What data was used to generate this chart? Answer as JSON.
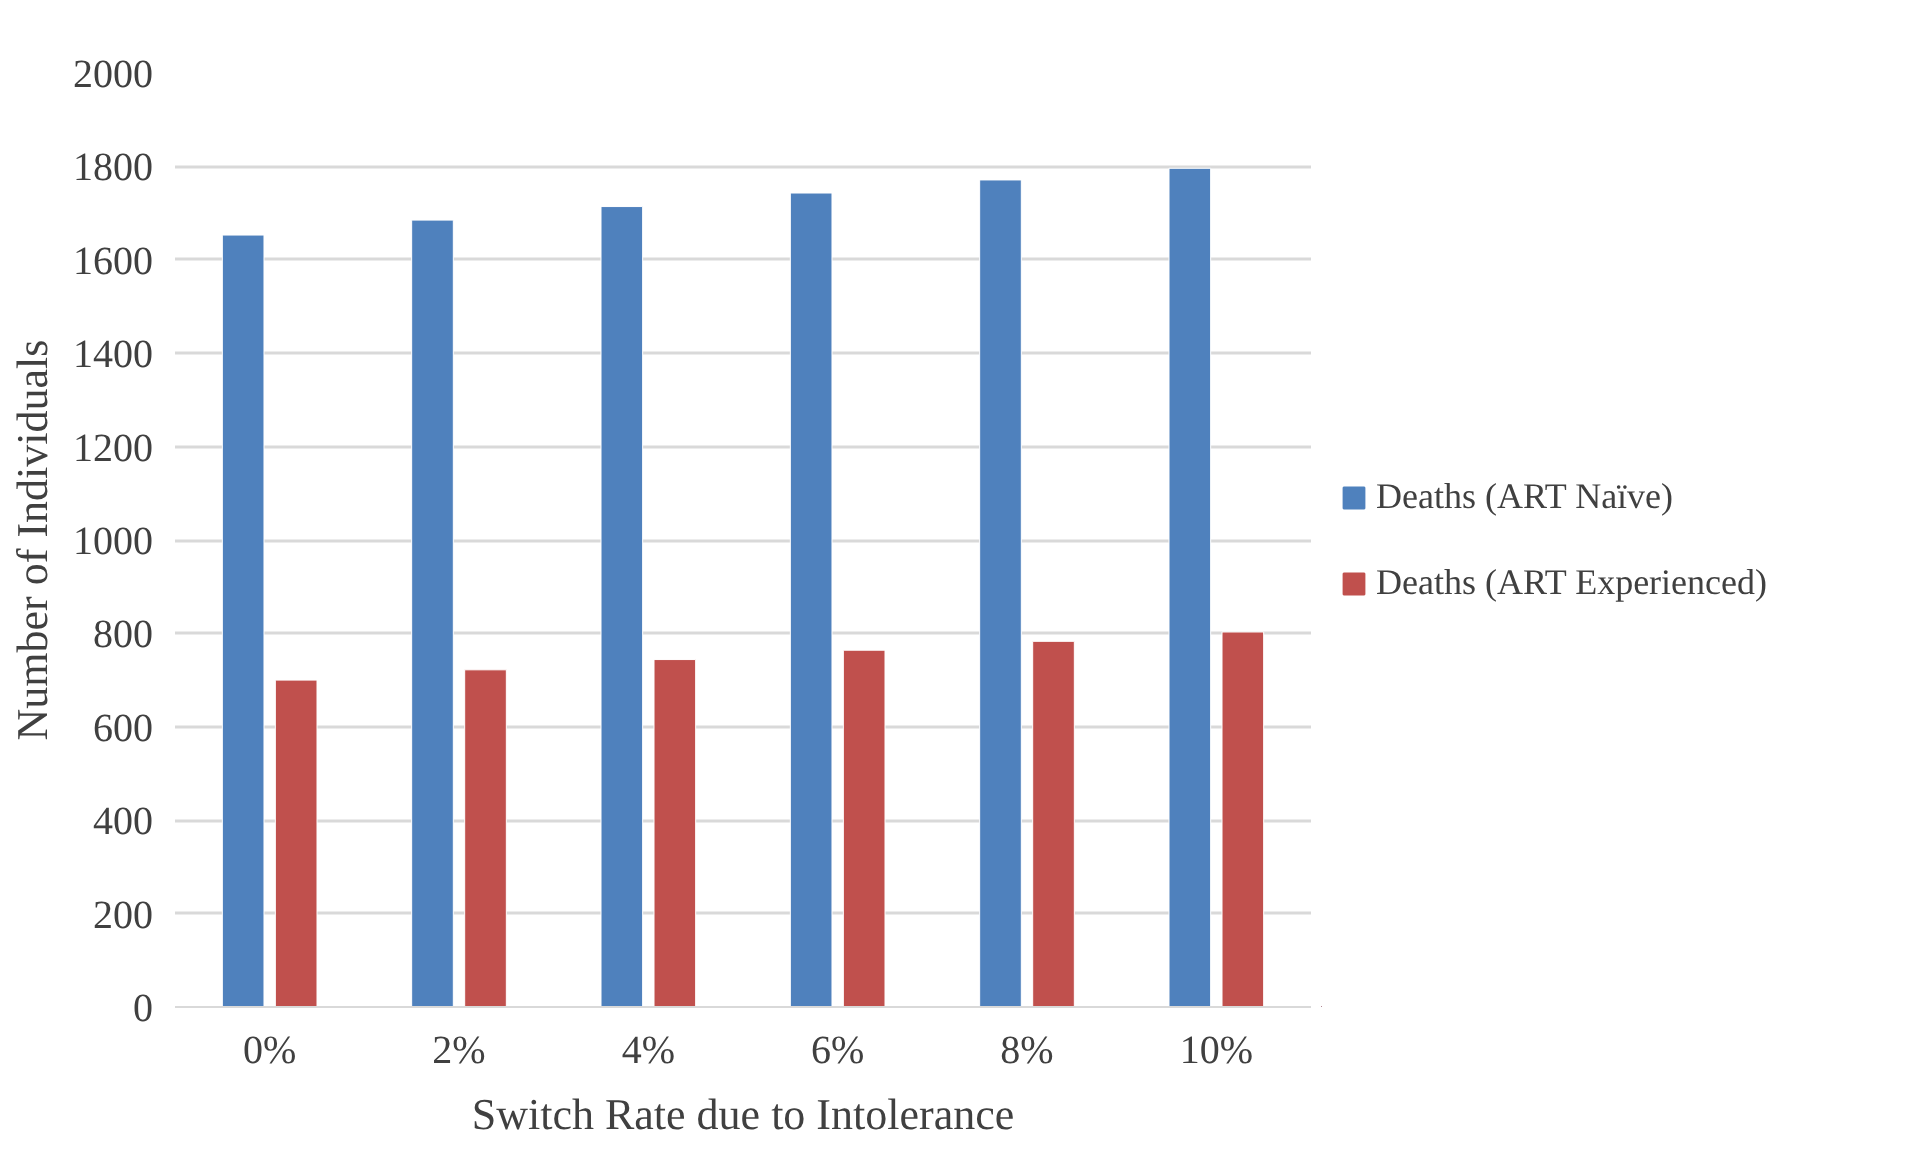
{
  "chart_data": {
    "type": "bar",
    "xlabel": "Switch Rate due to Intolerance",
    "ylabel": "Number of Individuals",
    "categories": [
      "0%",
      "2%",
      "4%",
      "6%",
      "8%",
      "10%"
    ],
    "series": [
      {
        "name": "Deaths (ART Naïve)",
        "color": "#4f81bd",
        "values": [
          1653,
          1685,
          1714,
          1743,
          1771,
          1796
        ]
      },
      {
        "name": "Deaths (ART Experienced)",
        "color": "#c0504d",
        "values": [
          700,
          722,
          744,
          764,
          783,
          803
        ]
      }
    ],
    "ylim": [
      0,
      2000
    ],
    "yticks": [
      0,
      200,
      400,
      600,
      800,
      1000,
      1200,
      1400,
      1600,
      1800,
      2000
    ],
    "grid": "y",
    "legend": "right"
  }
}
